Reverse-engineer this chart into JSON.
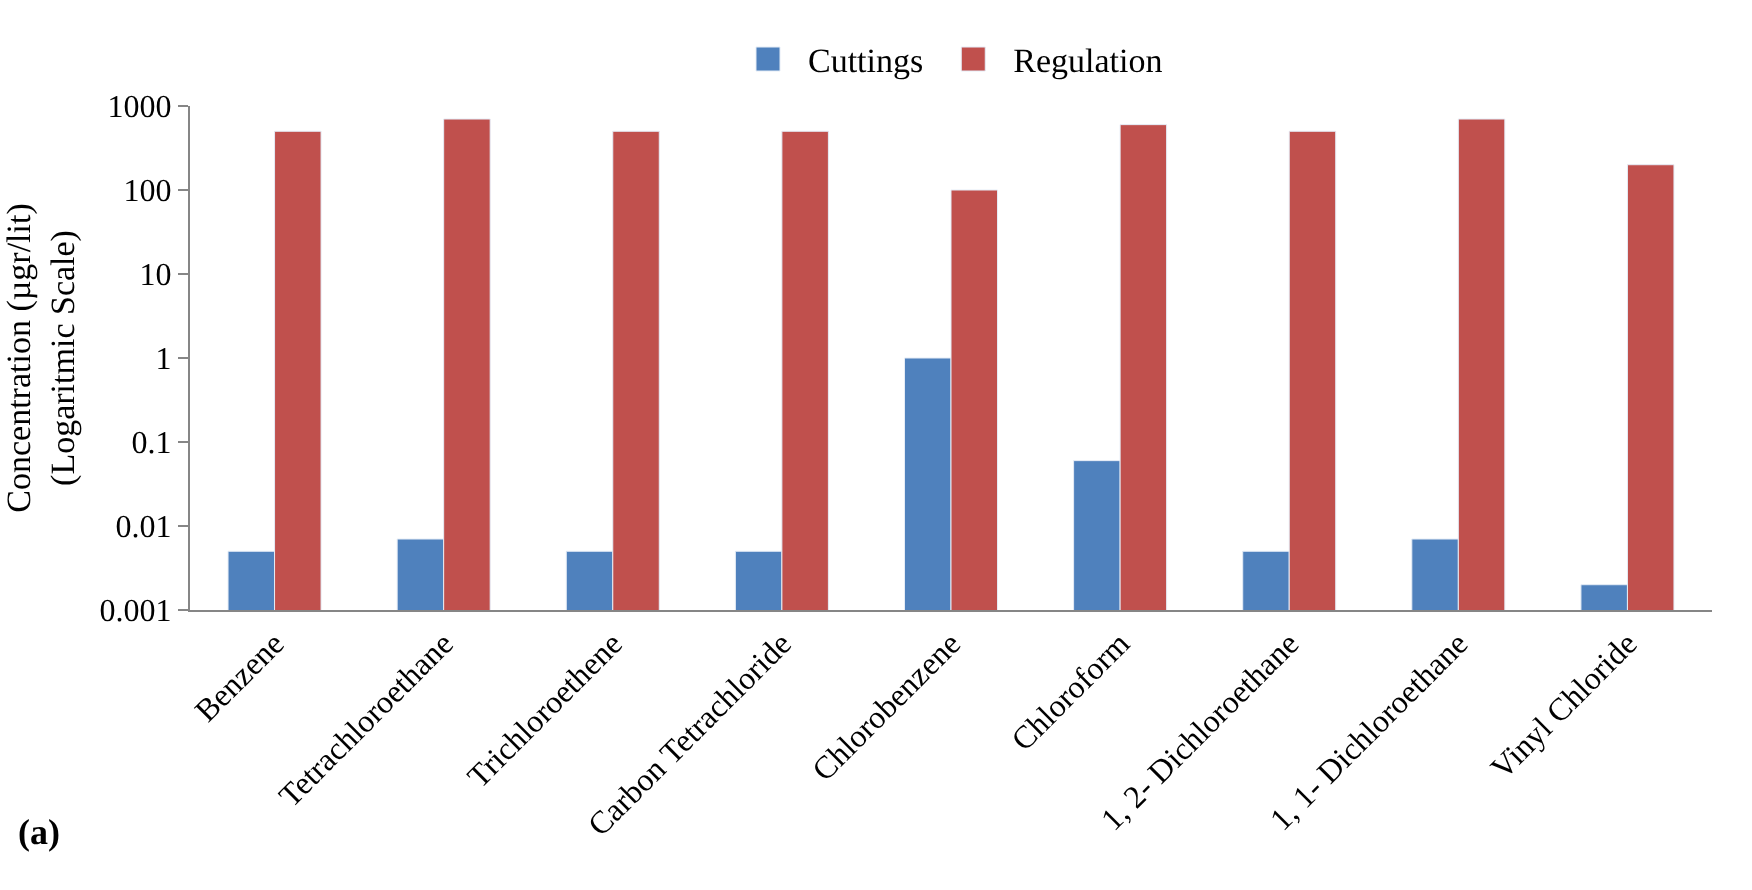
{
  "chart_data": {
    "type": "bar",
    "ylabel": "Concentration (µgr/lit)\n(Logaritmic Scale)",
    "categories": [
      "Benzene",
      "Tetrachloroethane",
      "Trichloroethene",
      "Carbon Tetrachloride",
      "Chlorobenzene",
      "Chloroform",
      "1, 2- Dichloroethane",
      "1, 1- Dichloroethane",
      "Vinyl Chloride"
    ],
    "series": [
      {
        "name": "Cuttings",
        "color": "#4f81bd",
        "values": [
          0.005,
          0.007,
          0.005,
          0.005,
          1,
          0.06,
          0.005,
          0.007,
          0.002
        ]
      },
      {
        "name": "Regulation",
        "color": "#c0504d",
        "values": [
          500,
          700,
          500,
          500,
          100,
          600,
          500,
          700,
          200
        ]
      }
    ],
    "log": "y",
    "ylim": [
      0.001,
      1000
    ],
    "yticks": [
      0.001,
      0.01,
      0.1,
      1,
      10,
      100,
      1000
    ],
    "grid": false,
    "legend": "top",
    "annotations": [
      "(a)"
    ]
  }
}
